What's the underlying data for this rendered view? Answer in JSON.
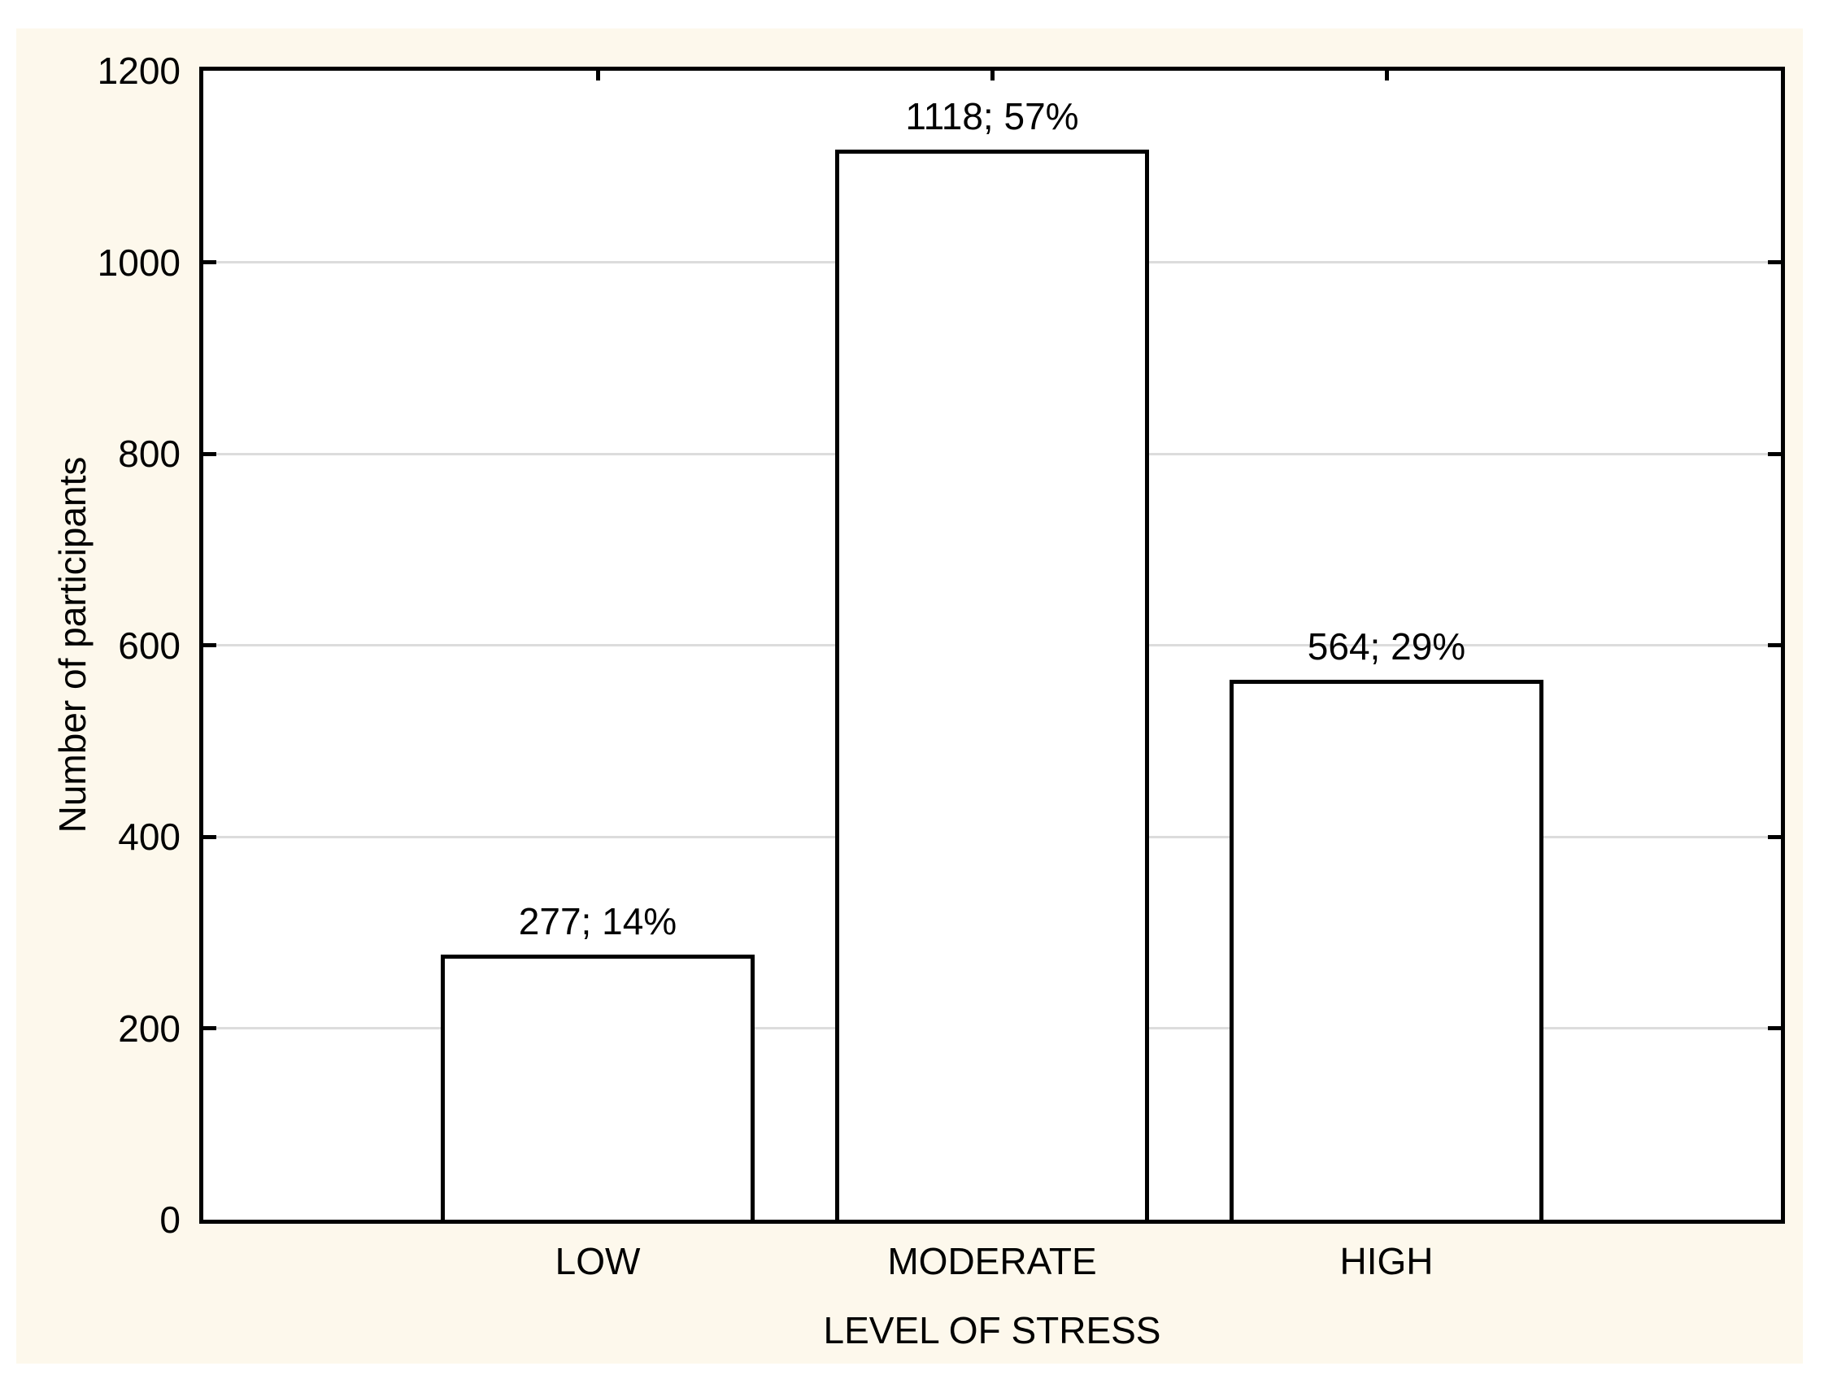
{
  "chart_data": {
    "type": "bar",
    "title": "",
    "categories": [
      "LOW",
      "MODERATE",
      "HIGH"
    ],
    "values": [
      277,
      1118,
      564
    ],
    "percents": [
      14,
      57,
      29
    ],
    "bar_labels": [
      "277; 14%",
      "1118; 57%",
      "564; 29%"
    ],
    "xlabel": "LEVEL OF STRESS",
    "ylabel": "Number of participants",
    "ylim": [
      0,
      1200
    ],
    "yticks": [
      0,
      200,
      400,
      600,
      800,
      1000,
      1200
    ],
    "grid": "horizontal-only",
    "legend": "none",
    "colors": {
      "page_background": "#FFFFFF",
      "canvas_background": "#FDF8EC",
      "plot_background": "#FFFFFF",
      "bar_fill": "#FFFFFF",
      "bar_border": "#000000",
      "gridline": "#DCDCDC",
      "axis": "#000000",
      "text": "#000000"
    }
  }
}
